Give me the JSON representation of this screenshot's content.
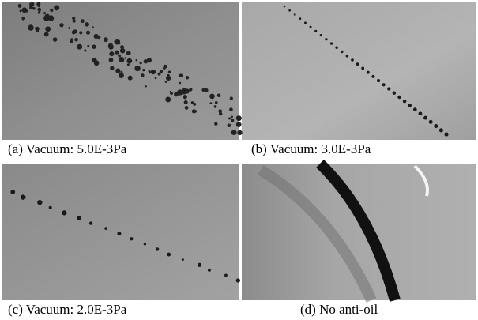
{
  "panels": [
    {
      "caption": "(a) Vacuum: 5.0E-3Pa"
    },
    {
      "caption": "(b) Vacuum: 3.0E-3Pa"
    },
    {
      "caption": "(c) Vacuum: 2.0E-3Pa"
    },
    {
      "caption": "(d) No anti-oil"
    }
  ]
}
